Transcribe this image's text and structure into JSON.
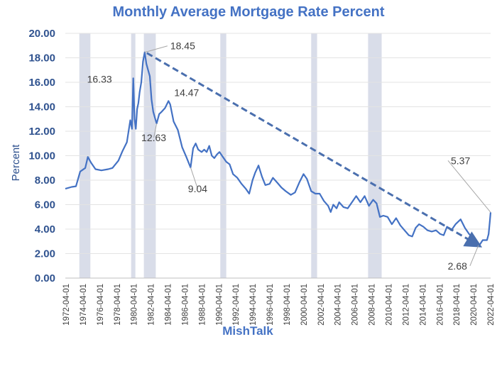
{
  "chart_data": {
    "type": "line",
    "title": "Monthly Average Mortgage Rate Percent",
    "xlabel": "MishTalk",
    "ylabel": "Percent",
    "ylim": [
      0,
      20
    ],
    "yticks": [
      "0.00",
      "2.00",
      "4.00",
      "6.00",
      "8.00",
      "10.00",
      "12.00",
      "14.00",
      "16.00",
      "18.00",
      "20.00"
    ],
    "xticks": [
      "1972-04-01",
      "1974-04-01",
      "1976-04-01",
      "1978-04-01",
      "1980-04-01",
      "1982-04-01",
      "1984-04-01",
      "1986-04-01",
      "1988-04-01",
      "1990-04-01",
      "1992-04-01",
      "1994-04-01",
      "1996-04-01",
      "1998-04-01",
      "2000-04-01",
      "2002-04-01",
      "2004-04-01",
      "2006-04-01",
      "2008-04-01",
      "2010-04-01",
      "2012-04-01",
      "2014-04-01",
      "2016-04-01",
      "2018-04-01",
      "2020-04-01",
      "2022-04-01"
    ],
    "xlim": [
      1972.25,
      2022.33
    ],
    "recessions": [
      [
        1973.9,
        1975.2
      ],
      [
        1980.0,
        1980.5
      ],
      [
        1981.5,
        1982.9
      ],
      [
        1990.5,
        1991.2
      ],
      [
        2001.2,
        2001.9
      ],
      [
        2007.9,
        2009.5
      ]
    ],
    "series": [
      {
        "color": "#4472c4",
        "x": [
          1972.25,
          1973.0,
          1973.5,
          1974.0,
          1974.6,
          1974.9,
          1975.3,
          1975.8,
          1976.5,
          1977.3,
          1977.8,
          1978.5,
          1979.0,
          1979.5,
          1979.9,
          1980.1,
          1980.25,
          1980.4,
          1980.55,
          1980.7,
          1980.85,
          1981.0,
          1981.2,
          1981.4,
          1981.6,
          1981.8,
          1982.0,
          1982.2,
          1982.4,
          1982.6,
          1982.8,
          1983.0,
          1983.3,
          1983.6,
          1984.0,
          1984.4,
          1984.6,
          1985.0,
          1985.5,
          1986.0,
          1986.5,
          1987.0,
          1987.3,
          1987.6,
          1987.9,
          1988.3,
          1988.6,
          1988.9,
          1989.2,
          1989.5,
          1989.8,
          1990.1,
          1990.4,
          1990.8,
          1991.2,
          1991.6,
          1992.0,
          1992.5,
          1993.0,
          1993.5,
          1993.9,
          1994.3,
          1994.6,
          1995.0,
          1995.4,
          1995.8,
          1996.3,
          1996.7,
          1997.2,
          1997.7,
          1998.2,
          1998.8,
          1999.3,
          1999.8,
          2000.3,
          2000.7,
          2001.2,
          2001.7,
          2002.2,
          2002.7,
          2003.2,
          2003.5,
          2003.8,
          2004.2,
          2004.5,
          2005.0,
          2005.5,
          2006.0,
          2006.5,
          2007.0,
          2007.5,
          2008.0,
          2008.5,
          2008.9,
          2009.3,
          2009.7,
          2010.2,
          2010.7,
          2011.2,
          2011.7,
          2012.2,
          2012.7,
          2013.1,
          2013.5,
          2013.9,
          2014.4,
          2014.9,
          2015.4,
          2015.9,
          2016.4,
          2016.8,
          2017.2,
          2017.7,
          2018.2,
          2018.8,
          2019.3,
          2019.8,
          2020.3,
          2020.8,
          2021.0,
          2021.4,
          2021.9,
          2022.1,
          2022.25,
          2022.33
        ],
        "values": [
          7.3,
          7.45,
          7.5,
          8.7,
          9.0,
          9.9,
          9.4,
          8.9,
          8.8,
          8.9,
          9.0,
          9.6,
          10.4,
          11.1,
          12.9,
          12.2,
          16.33,
          13.0,
          12.2,
          13.8,
          14.3,
          15.2,
          16.0,
          17.7,
          18.45,
          17.5,
          17.0,
          16.5,
          14.6,
          13.6,
          13.1,
          12.63,
          13.4,
          13.6,
          13.9,
          14.47,
          14.2,
          12.8,
          12.1,
          10.7,
          9.9,
          9.04,
          10.6,
          11.0,
          10.5,
          10.3,
          10.5,
          10.3,
          10.8,
          10.0,
          9.8,
          10.1,
          10.3,
          9.9,
          9.5,
          9.3,
          8.5,
          8.2,
          7.7,
          7.3,
          6.9,
          8.0,
          8.6,
          9.2,
          8.3,
          7.6,
          7.7,
          8.2,
          7.8,
          7.4,
          7.1,
          6.8,
          7.0,
          7.8,
          8.5,
          8.1,
          7.1,
          6.9,
          6.9,
          6.3,
          5.9,
          5.4,
          6.0,
          5.7,
          6.2,
          5.8,
          5.7,
          6.2,
          6.7,
          6.2,
          6.7,
          5.9,
          6.4,
          6.1,
          5.0,
          5.1,
          5.0,
          4.4,
          4.9,
          4.3,
          3.9,
          3.5,
          3.4,
          4.1,
          4.4,
          4.2,
          3.9,
          3.8,
          3.9,
          3.6,
          3.5,
          4.2,
          3.9,
          4.4,
          4.8,
          4.1,
          3.6,
          3.3,
          2.8,
          2.68,
          3.1,
          3.1,
          3.6,
          4.7,
          5.37
        ]
      }
    ],
    "trendline": {
      "from": [
        1981.6,
        18.45
      ],
      "to": [
        2020.9,
        2.68
      ]
    },
    "annotations": [
      {
        "text": "18.45",
        "x": 1981.6,
        "y": 18.45
      },
      {
        "text": "16.33",
        "x": 1980.25,
        "y": 16.33
      },
      {
        "text": "14.47",
        "x": 1984.4,
        "y": 14.47
      },
      {
        "text": "12.63",
        "x": 1983.0,
        "y": 12.63
      },
      {
        "text": "9.04",
        "x": 1987.0,
        "y": 9.04
      },
      {
        "text": "5.37",
        "x": 2022.33,
        "y": 5.37
      },
      {
        "text": "2.68",
        "x": 2020.9,
        "y": 2.68
      }
    ],
    "grid": true
  }
}
